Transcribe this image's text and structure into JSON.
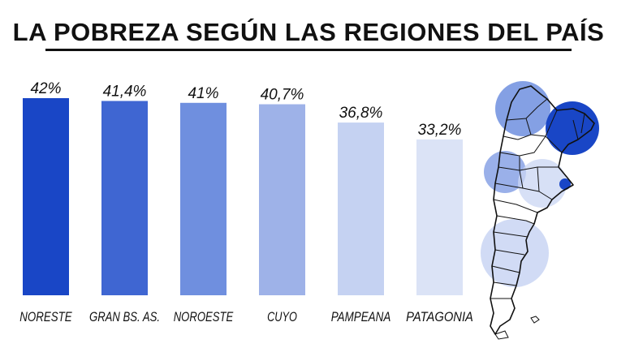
{
  "chart_data": {
    "type": "bar",
    "title": "LA POBREZA SEGÚN LAS REGIONES DEL PAÍS",
    "categories": [
      "NORESTE",
      "GRAN BS. AS.",
      "NOROESTE",
      "CUYO",
      "PAMPEANA",
      "PATAGONIA"
    ],
    "values": [
      42,
      41.4,
      41,
      40.7,
      36.8,
      33.2
    ],
    "value_labels": [
      "42%",
      "41,4%",
      "41%",
      "40,7%",
      "36,8%",
      "33,2%"
    ],
    "colors": [
      "#1946c6",
      "#3f66d2",
      "#6f8fdf",
      "#9eb2e8",
      "#c5d2f2",
      "#dbe3f6"
    ],
    "xlabel": "",
    "ylabel": "",
    "ylim": [
      0,
      42
    ],
    "grid": false,
    "legend": "none"
  },
  "map_colors": {
    "dark": "#1946c6",
    "medium": "#6f8fdf",
    "light": "#c9d5f3"
  }
}
